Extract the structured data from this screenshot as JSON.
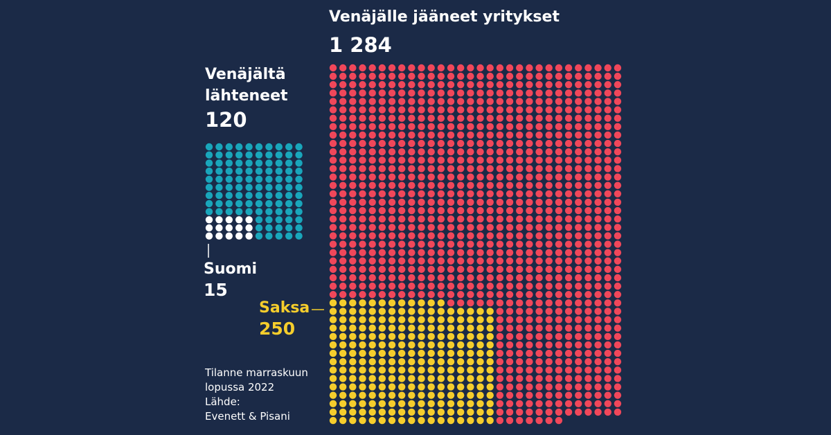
{
  "chart_data": {
    "type": "waffle",
    "groups": [
      {
        "label": "Venäjältä lähteneet",
        "value": 120,
        "color": "#19a6bb",
        "columns": 10,
        "highlight": {
          "label": "Suomi",
          "value": 15,
          "color": "#ffffff",
          "columns": 5
        }
      },
      {
        "label": "Venäjälle jääneet yritykset",
        "value": 1284,
        "value_label": "1 284",
        "color": "#f0475a",
        "columns": 30,
        "highlight": {
          "label": "Saksa",
          "value": 250,
          "color": "#f5cd2c",
          "columns": 17
        }
      }
    ],
    "note": "Tilanne marraskuun lopussa 2022",
    "source_label": "Lähde:",
    "source": "Evenett & Pisani"
  }
}
